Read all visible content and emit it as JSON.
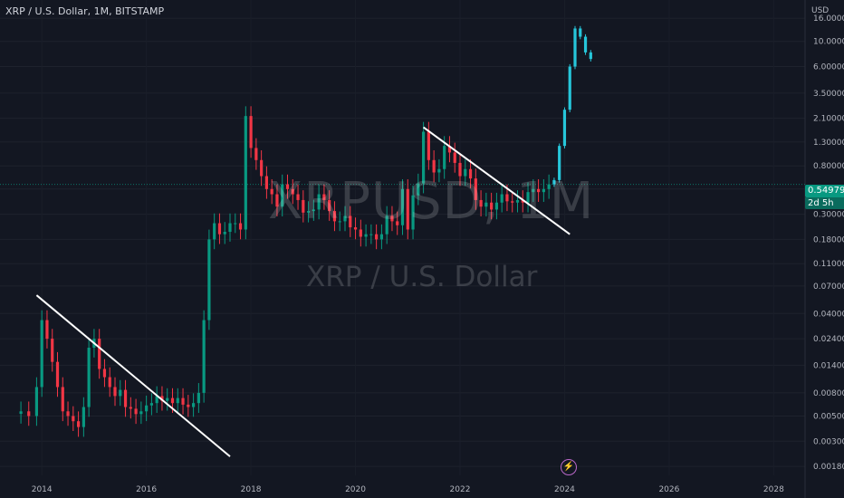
{
  "header": {
    "title": "XRP / U.S. Dollar, 1M, BITSTAMP"
  },
  "watermark": {
    "ticker": "XRPUSD, 1M",
    "name": "XRP / U.S. Dollar"
  },
  "price_axis": {
    "currency": "USD",
    "ticks": [
      "16.00000",
      "10.00000",
      "6.00000",
      "3.50000",
      "2.10000",
      "1.30000",
      "0.80000",
      "0.50000",
      "0.30000",
      "0.18000",
      "0.11000",
      "0.07000",
      "0.04000",
      "0.02400",
      "0.01400",
      "0.00800",
      "0.00500",
      "0.00300",
      "0.00180"
    ]
  },
  "time_axis": {
    "ticks": [
      "2014",
      "2016",
      "2018",
      "2020",
      "2022",
      "2024",
      "2026",
      "2028"
    ]
  },
  "current_price": {
    "value": "0.54979",
    "countdown": "2d 5h",
    "color": "#089981"
  },
  "colors": {
    "up": "#089981",
    "down": "#f23645",
    "projection": "#26c6da",
    "trendline": "#ffffff",
    "background": "#131722"
  },
  "event_icon": "lightning-icon",
  "chart_data": {
    "type": "candlestick",
    "title": "XRP / U.S. Dollar, 1M, BITSTAMP",
    "y_scale": "log",
    "ylim": [
      0.0015,
      20
    ],
    "xlim": [
      2013.2,
      2028.6
    ],
    "series": [
      {
        "name": "XRPUSD",
        "points": [
          [
            2013.6,
            0.0055
          ],
          [
            2013.75,
            0.005
          ],
          [
            2013.9,
            0.009
          ],
          [
            2014.0,
            0.035
          ],
          [
            2014.1,
            0.024
          ],
          [
            2014.2,
            0.015
          ],
          [
            2014.3,
            0.009
          ],
          [
            2014.4,
            0.0055
          ],
          [
            2014.5,
            0.005
          ],
          [
            2014.6,
            0.0045
          ],
          [
            2014.7,
            0.004
          ],
          [
            2014.8,
            0.006
          ],
          [
            2014.9,
            0.02
          ],
          [
            2015.0,
            0.024
          ],
          [
            2015.1,
            0.013
          ],
          [
            2015.2,
            0.011
          ],
          [
            2015.3,
            0.009
          ],
          [
            2015.4,
            0.0075
          ],
          [
            2015.5,
            0.0085
          ],
          [
            2015.6,
            0.006
          ],
          [
            2015.7,
            0.0058
          ],
          [
            2015.8,
            0.0052
          ],
          [
            2015.9,
            0.0055
          ],
          [
            2016.0,
            0.0062
          ],
          [
            2016.1,
            0.0065
          ],
          [
            2016.2,
            0.0075
          ],
          [
            2016.3,
            0.0068
          ],
          [
            2016.4,
            0.0072
          ],
          [
            2016.5,
            0.0065
          ],
          [
            2016.6,
            0.0072
          ],
          [
            2016.7,
            0.0063
          ],
          [
            2016.8,
            0.006
          ],
          [
            2016.9,
            0.0065
          ],
          [
            2017.0,
            0.008
          ],
          [
            2017.1,
            0.035
          ],
          [
            2017.2,
            0.18
          ],
          [
            2017.3,
            0.25
          ],
          [
            2017.4,
            0.2
          ],
          [
            2017.5,
            0.21
          ],
          [
            2017.6,
            0.25
          ],
          [
            2017.7,
            0.25
          ],
          [
            2017.8,
            0.22
          ],
          [
            2017.9,
            2.2
          ],
          [
            2018.0,
            1.15
          ],
          [
            2018.1,
            0.9
          ],
          [
            2018.2,
            0.65
          ],
          [
            2018.3,
            0.5
          ],
          [
            2018.4,
            0.45
          ],
          [
            2018.5,
            0.35
          ],
          [
            2018.6,
            0.55
          ],
          [
            2018.7,
            0.5
          ],
          [
            2018.8,
            0.45
          ],
          [
            2018.9,
            0.4
          ],
          [
            2019.0,
            0.31
          ],
          [
            2019.1,
            0.32
          ],
          [
            2019.2,
            0.33
          ],
          [
            2019.3,
            0.45
          ],
          [
            2019.4,
            0.4
          ],
          [
            2019.5,
            0.32
          ],
          [
            2019.6,
            0.26
          ],
          [
            2019.7,
            0.26
          ],
          [
            2019.8,
            0.29
          ],
          [
            2019.9,
            0.23
          ],
          [
            2020.0,
            0.22
          ],
          [
            2020.1,
            0.19
          ],
          [
            2020.2,
            0.2
          ],
          [
            2020.3,
            0.2
          ],
          [
            2020.4,
            0.18
          ],
          [
            2020.5,
            0.2
          ],
          [
            2020.6,
            0.29
          ],
          [
            2020.7,
            0.26
          ],
          [
            2020.8,
            0.24
          ],
          [
            2020.9,
            0.5
          ],
          [
            2021.0,
            0.22
          ],
          [
            2021.1,
            0.44
          ],
          [
            2021.2,
            0.56
          ],
          [
            2021.3,
            1.6
          ],
          [
            2021.4,
            0.9
          ],
          [
            2021.5,
            0.7
          ],
          [
            2021.6,
            0.75
          ],
          [
            2021.7,
            1.2
          ],
          [
            2021.8,
            1.05
          ],
          [
            2021.9,
            0.85
          ],
          [
            2022.0,
            0.65
          ],
          [
            2022.1,
            0.75
          ],
          [
            2022.2,
            0.62
          ],
          [
            2022.3,
            0.4
          ],
          [
            2022.4,
            0.35
          ],
          [
            2022.5,
            0.38
          ],
          [
            2022.6,
            0.33
          ],
          [
            2022.7,
            0.38
          ],
          [
            2022.8,
            0.45
          ],
          [
            2022.9,
            0.39
          ],
          [
            2023.0,
            0.38
          ],
          [
            2023.1,
            0.4
          ],
          [
            2023.2,
            0.38
          ],
          [
            2023.3,
            0.47
          ],
          [
            2023.4,
            0.5
          ],
          [
            2023.5,
            0.47
          ],
          [
            2023.6,
            0.5
          ],
          [
            2023.7,
            0.55
          ]
        ]
      },
      {
        "name": "projection",
        "points": [
          [
            2023.8,
            0.6
          ],
          [
            2023.9,
            1.2
          ],
          [
            2024.0,
            2.5
          ],
          [
            2024.1,
            6
          ],
          [
            2024.2,
            13
          ],
          [
            2024.3,
            11
          ],
          [
            2024.4,
            8
          ],
          [
            2024.5,
            7
          ]
        ]
      }
    ],
    "trendlines": [
      {
        "from": [
          2013.9,
          0.058
        ],
        "to": [
          2017.6,
          0.0022
        ]
      },
      {
        "from": [
          2021.3,
          1.75
        ],
        "to": [
          2024.1,
          0.2
        ]
      }
    ]
  }
}
